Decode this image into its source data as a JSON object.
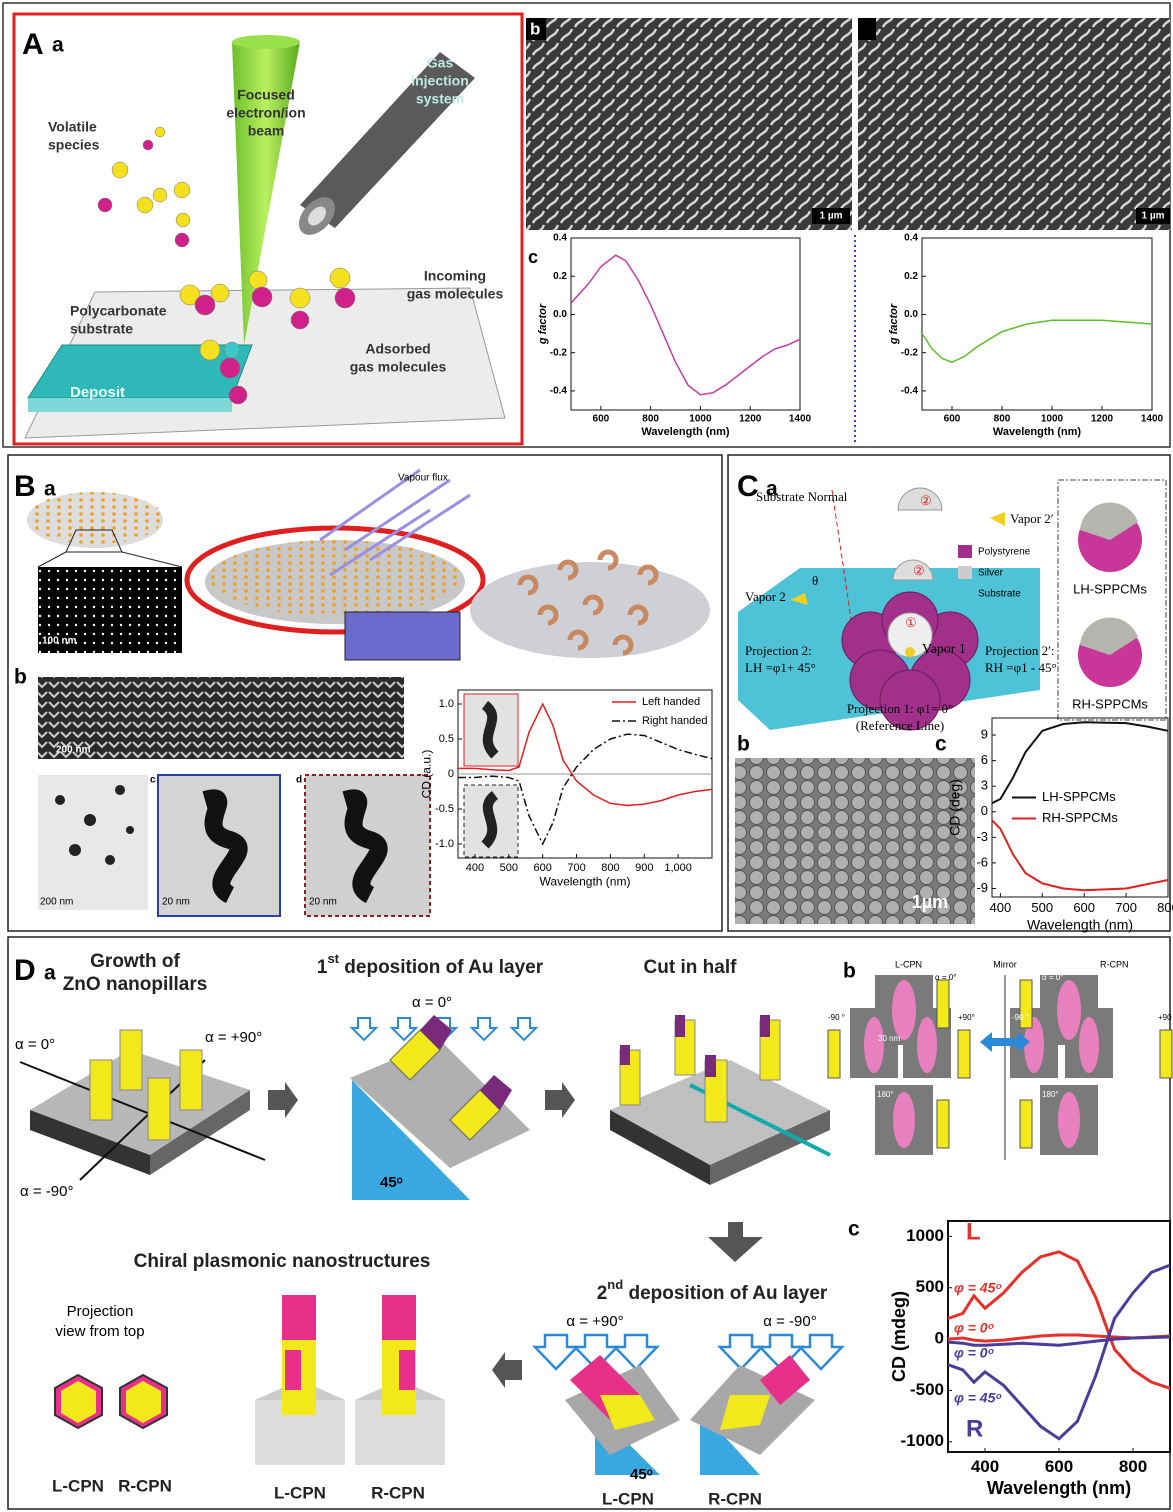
{
  "panel_a": {
    "label": "A",
    "sub_a": "a",
    "beam": [
      "Focused",
      "electron/ion",
      "beam"
    ],
    "gis": [
      "Gas",
      "injection",
      "system"
    ],
    "volatile": [
      "Volatile",
      "species"
    ],
    "incoming": [
      "Incoming",
      "gas molecules"
    ],
    "substrate": [
      "Polycarbonate",
      "substrate"
    ],
    "adsorbed": [
      "Adsorbed",
      "gas molecules"
    ],
    "deposit": "Deposit",
    "sub_b": "b",
    "scale_left": "1 µm",
    "scale_right": "1 µm",
    "sub_c": "c"
  },
  "panel_b": {
    "label": "B",
    "sub_a": "a",
    "vapour": "Vapour flux",
    "scale_a": "100 nm",
    "sub_b": "b",
    "scale_b1": "200 nm",
    "scale_b2": "200 nm",
    "sub_c": "c",
    "scale_c": "20 nm",
    "sub_d": "d",
    "scale_d": "20 nm"
  },
  "panel_c": {
    "label": "C",
    "sub_a": "a",
    "normal": "Substrate Normal",
    "vapor2p": "Vapor 2′",
    "vapor2": "Vapor 2",
    "theta": "θ",
    "circle2": "②",
    "circle1": "①",
    "legend": [
      "Polystyrene",
      "Silver",
      "Substrate"
    ],
    "vapor1": "Vapor 1",
    "proj2": [
      "Projection 2:",
      "LH =φ1+ 45°"
    ],
    "proj2p": [
      "Projection 2′:",
      "RH =φ1 - 45°"
    ],
    "proj1": [
      "Projection 1: φ1= 0°",
      "(Reference Line)"
    ],
    "lh": "LH-SPPCMs",
    "rh": "RH-SPPCMs",
    "sub_b": "b",
    "scale": "1µm",
    "sub_c": "c"
  },
  "panel_d": {
    "label": "D",
    "sub_a": "a",
    "growth": [
      "Growth of",
      "ZnO nanopillars"
    ],
    "alpha0": "α = 0°",
    "alpha_p90": "α = +90°",
    "alpha_m90": "α = -90°",
    "first": [
      "1",
      "st",
      " deposition of Au layer"
    ],
    "first_alpha": "α = 0°",
    "angle1": "45ᵒ",
    "cut": "Cut in half",
    "second": [
      "2",
      "nd",
      " deposition of Au layer"
    ],
    "second_alpha_l": "α = +90°",
    "second_alpha_r": "α = -90°",
    "angle2": "45ᵒ",
    "second_l": "L-CPN",
    "second_r": "R-CPN",
    "chiral": "Chiral plasmonic nanostructures",
    "projection": [
      "Projection",
      "view from top"
    ],
    "proj_l": "L-CPN",
    "proj_r": "R-CPN",
    "model_l": "L-CPN",
    "model_r": "R-CPN",
    "sub_b": "b",
    "b_left": "L-CPN",
    "mirror": "Mirror",
    "b_right": "R-CPN",
    "b_angles_left": [
      "α = 0°",
      "-90 °",
      "+90°",
      "180°"
    ],
    "b_angles_right": [
      "α = 0°",
      "-90 °",
      "+90",
      "180°"
    ],
    "scale": "30 nm",
    "sub_c": "c"
  },
  "chart_data": [
    {
      "type": "line",
      "xlabel": "Wavelength (nm)",
      "ylabel": "g factor",
      "xlim": [
        480,
        1400
      ],
      "ylim": [
        -0.5,
        0.4
      ],
      "xticks": [
        600,
        800,
        1000,
        1200,
        1400
      ],
      "yticks": [
        -0.4,
        -0.2,
        {
          "value": 0,
          "label": "0.0"
        },
        0.2,
        0.4
      ],
      "x": [
        480,
        550,
        600,
        660,
        700,
        750,
        800,
        850,
        900,
        950,
        1000,
        1050,
        1100,
        1150,
        1200,
        1250,
        1300,
        1350,
        1400
      ],
      "series": [
        {
          "color": "#c43ca8",
          "values": [
            0.06,
            0.16,
            0.25,
            0.31,
            0.28,
            0.18,
            0.05,
            -0.1,
            -0.25,
            -0.37,
            -0.42,
            -0.41,
            -0.37,
            -0.32,
            -0.27,
            -0.22,
            -0.18,
            -0.16,
            -0.13
          ]
        }
      ]
    },
    {
      "type": "line",
      "xlabel": "Wavelength (nm)",
      "ylabel": "g factor",
      "xlim": [
        480,
        1400
      ],
      "ylim": [
        -0.5,
        0.4
      ],
      "xticks": [
        600,
        800,
        1000,
        1200,
        1400
      ],
      "yticks": [
        -0.4,
        -0.2,
        {
          "value": 0,
          "label": "0.0"
        },
        0.2,
        0.4
      ],
      "x": [
        480,
        520,
        560,
        600,
        650,
        700,
        800,
        900,
        1000,
        1100,
        1200,
        1300,
        1400
      ],
      "series": [
        {
          "color": "#5cbf2a",
          "values": [
            -0.1,
            -0.18,
            -0.23,
            -0.25,
            -0.22,
            -0.17,
            -0.09,
            -0.05,
            -0.03,
            -0.03,
            -0.03,
            -0.04,
            -0.05
          ]
        }
      ]
    },
    {
      "type": "line",
      "xlabel": "Wavelength (nm)",
      "ylabel": "CD (a.u.)",
      "xlim": [
        350,
        1100
      ],
      "ylim": [
        -1.2,
        1.2
      ],
      "xticks": [
        400,
        500,
        600,
        700,
        800,
        900,
        {
          "value": 1000,
          "label": "1,000"
        }
      ],
      "yticks": [
        {
          "value": -1,
          "label": "-1.0"
        },
        -0.5,
        0,
        0.5,
        {
          "value": 1,
          "label": "1.0"
        }
      ],
      "reference_line": 0,
      "legend": "upper right",
      "x": [
        350,
        400,
        450,
        500,
        530,
        560,
        600,
        630,
        660,
        700,
        750,
        800,
        850,
        900,
        950,
        1000,
        1050,
        1100
      ],
      "series": [
        {
          "name": "Left handed",
          "color": "#e02020",
          "dash": "solid",
          "values": [
            0.08,
            0.08,
            0.06,
            0.05,
            0.1,
            0.6,
            1.0,
            0.7,
            0.2,
            -0.1,
            -0.3,
            -0.42,
            -0.45,
            -0.43,
            -0.38,
            -0.3,
            -0.25,
            -0.22
          ]
        },
        {
          "name": "Right handed",
          "color": "#111111",
          "dash": "dashed",
          "values": [
            -0.05,
            -0.05,
            -0.03,
            -0.05,
            -0.1,
            -0.6,
            -1.0,
            -0.7,
            -0.2,
            0.1,
            0.35,
            0.5,
            0.57,
            0.55,
            0.45,
            0.35,
            0.28,
            0.22
          ]
        }
      ]
    },
    {
      "type": "line",
      "xlabel": "Wavelength (nm)",
      "ylabel": "CD (deg)",
      "xlim": [
        380,
        800
      ],
      "ylim": [
        -10,
        11
      ],
      "xticks": [
        400,
        500,
        600,
        700,
        800
      ],
      "yticks": [
        -9,
        -6,
        -3,
        0,
        3,
        6,
        9
      ],
      "legend": "center right",
      "x": [
        380,
        400,
        430,
        460,
        500,
        550,
        600,
        700,
        750,
        800
      ],
      "series": [
        {
          "name": "LH-SPPCMs",
          "color": "#111111",
          "dash": "solid",
          "values": [
            1,
            1.5,
            4,
            7,
            9.5,
            10.3,
            10.5,
            10.4,
            10,
            9.5
          ]
        },
        {
          "name": "RH-SPPCMs",
          "color": "#e02020",
          "dash": "solid",
          "values": [
            -1,
            -2,
            -5,
            -7.2,
            -8.4,
            -9,
            -9.2,
            -9,
            -8.5,
            -8
          ]
        }
      ]
    },
    {
      "type": "line",
      "xlabel": "Wavelength (nm)",
      "ylabel": "CD (mdeg)",
      "xlim": [
        300,
        900
      ],
      "ylim": [
        -1100,
        1150
      ],
      "xticks": [
        400,
        600,
        800
      ],
      "yticks": [
        -1000,
        -500,
        0,
        500,
        1000
      ],
      "legend": "inline",
      "annotations": [
        {
          "text": "L",
          "color": "#e8302a"
        },
        {
          "text": "R",
          "color": "#4a3d9a"
        }
      ],
      "x": [
        300,
        340,
        370,
        400,
        450,
        500,
        550,
        600,
        650,
        700,
        750,
        800,
        850,
        900
      ],
      "series": [
        {
          "name": "φ = 45ᵒ",
          "color": "#e8302a",
          "dash": "solid",
          "values": [
            200,
            250,
            420,
            300,
            450,
            650,
            800,
            850,
            760,
            400,
            -100,
            -300,
            -420,
            -480
          ]
        },
        {
          "name": "φ = 0ᵒ",
          "color": "#e8302a",
          "dash": "solid",
          "values": [
            0,
            10,
            -10,
            -20,
            -10,
            10,
            30,
            40,
            40,
            30,
            20,
            10,
            20,
            30
          ]
        },
        {
          "name": "φ = 0ᵒ",
          "color": "#4a3d9a",
          "dash": "solid",
          "values": [
            -30,
            -40,
            -60,
            -60,
            -50,
            -40,
            -50,
            -60,
            -40,
            -20,
            0,
            10,
            15,
            20
          ]
        },
        {
          "name": "φ = 45ᵒ",
          "color": "#4a3d9a",
          "dash": "solid",
          "values": [
            -250,
            -300,
            -420,
            -320,
            -450,
            -650,
            -850,
            -970,
            -800,
            -350,
            200,
            450,
            650,
            720
          ]
        }
      ]
    }
  ]
}
